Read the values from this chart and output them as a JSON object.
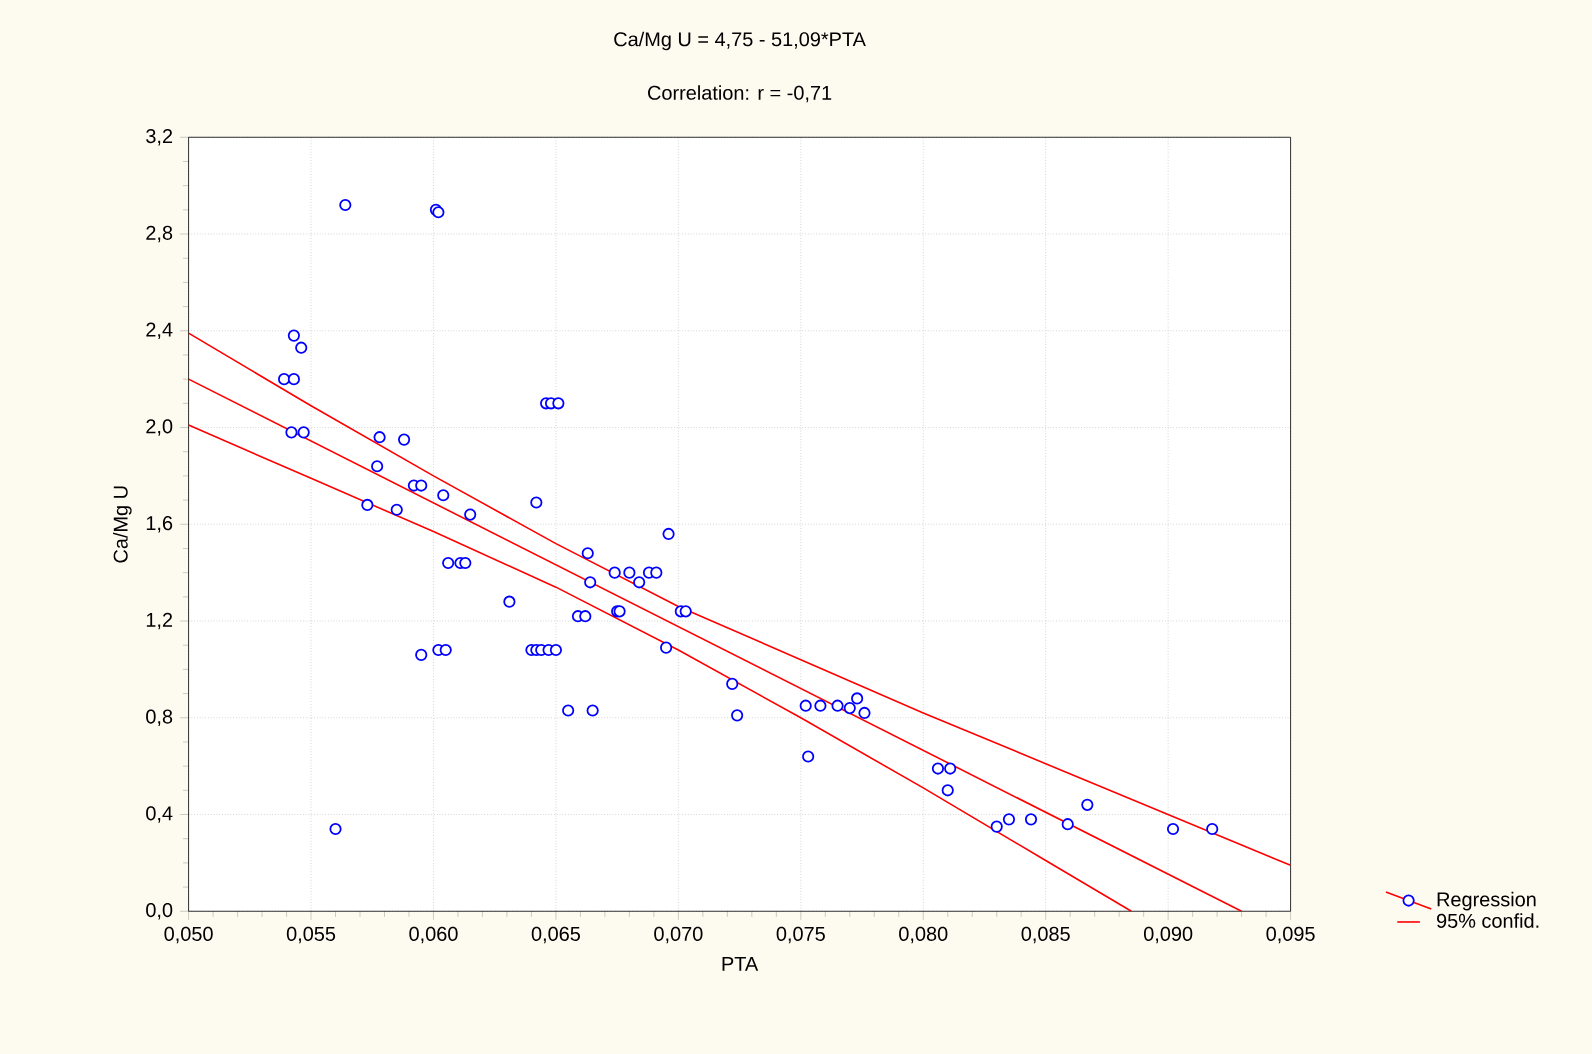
{
  "chart_data": {
    "type": "scatter",
    "title": "Ca/Mg U = 4,75 - 51,09*PTA",
    "subtitle": "Correlation: r = -0,71",
    "xlabel": "PTA",
    "ylabel": "Ca/Mg U",
    "xlim": [
      0.05,
      0.095
    ],
    "ylim": [
      0,
      3.2
    ],
    "xticks": [
      {
        "value": 0.05,
        "label": "0,050"
      },
      {
        "value": 0.055,
        "label": "0,055"
      },
      {
        "value": 0.06,
        "label": "0,060"
      },
      {
        "value": 0.065,
        "label": "0,065"
      },
      {
        "value": 0.07,
        "label": "0,070"
      },
      {
        "value": 0.075,
        "label": "0,075"
      },
      {
        "value": 0.08,
        "label": "0,080"
      },
      {
        "value": 0.085,
        "label": "0,085"
      },
      {
        "value": 0.09,
        "label": "0,090"
      },
      {
        "value": 0.095,
        "label": "0,095"
      }
    ],
    "yticks": [
      {
        "value": 0,
        "label": "0,0"
      },
      {
        "value": 0.4,
        "label": "0,4"
      },
      {
        "value": 0.8,
        "label": "0,8"
      },
      {
        "value": 1.2,
        "label": "1,2"
      },
      {
        "value": 1.6,
        "label": "1,6"
      },
      {
        "value": 2.0,
        "label": "2,0"
      },
      {
        "value": 2.4,
        "label": "2,4"
      },
      {
        "value": 2.8,
        "label": "2,8"
      },
      {
        "value": 3.2,
        "label": "3,2"
      }
    ],
    "grid": true,
    "legend": "bottom right",
    "series": [
      {
        "marker": "circle",
        "color": "#0000ff",
        "x": [
          0.0564,
          0.0601,
          0.0602,
          0.0543,
          0.0546,
          0.0539,
          0.0543,
          0.0542,
          0.0547,
          0.0578,
          0.0588,
          0.0577,
          0.0592,
          0.0595,
          0.0604,
          0.0573,
          0.0585,
          0.0615,
          0.0642,
          0.0606,
          0.0611,
          0.0613,
          0.0631,
          0.0595,
          0.0602,
          0.0605,
          0.064,
          0.0642,
          0.0644,
          0.0647,
          0.065,
          0.0646,
          0.0648,
          0.0651,
          0.056,
          0.0655,
          0.0665,
          0.0663,
          0.0664,
          0.0659,
          0.0662,
          0.0696,
          0.0674,
          0.068,
          0.0684,
          0.0688,
          0.0691,
          0.0675,
          0.0676,
          0.0701,
          0.0703,
          0.0695,
          0.0722,
          0.0724,
          0.0752,
          0.0758,
          0.0765,
          0.077,
          0.0773,
          0.0776,
          0.0753,
          0.0806,
          0.0811,
          0.081,
          0.083,
          0.0835,
          0.0844,
          0.0859,
          0.0867,
          0.0902,
          0.0918
        ],
        "values": [
          2.92,
          2.9,
          2.89,
          2.38,
          2.33,
          2.2,
          2.2,
          1.98,
          1.98,
          1.96,
          1.95,
          1.84,
          1.76,
          1.76,
          1.72,
          1.68,
          1.66,
          1.64,
          1.69,
          1.44,
          1.44,
          1.44,
          1.28,
          1.06,
          1.08,
          1.08,
          1.08,
          1.08,
          1.08,
          1.08,
          1.08,
          2.1,
          2.1,
          2.1,
          0.34,
          0.83,
          0.83,
          1.48,
          1.36,
          1.22,
          1.22,
          1.56,
          1.4,
          1.4,
          1.36,
          1.4,
          1.4,
          1.24,
          1.24,
          1.24,
          1.24,
          1.09,
          0.94,
          0.81,
          0.85,
          0.85,
          0.85,
          0.84,
          0.88,
          0.82,
          0.64,
          0.59,
          0.59,
          0.5,
          0.35,
          0.38,
          0.38,
          0.36,
          0.44,
          0.34,
          0.34
        ]
      },
      {
        "type": "line",
        "marker": "none",
        "name": "Regression",
        "color": "#ff0000",
        "x": [
          0.05,
          0.093
        ],
        "values": [
          2.2,
          0.0
        ]
      },
      {
        "type": "line",
        "marker": "none",
        "name": "95% confid.",
        "color": "#ff0000",
        "x": [
          0.05,
          0.055,
          0.06,
          0.065,
          0.07,
          0.075,
          0.08,
          0.085,
          0.09,
          0.095
        ],
        "values": [
          2.39,
          2.09,
          1.8,
          1.52,
          1.26,
          1.04,
          0.82,
          0.61,
          0.4,
          0.19
        ]
      },
      {
        "type": "line",
        "marker": "none",
        "color": "#ff0000",
        "x": [
          0.05,
          0.055,
          0.06,
          0.065,
          0.07,
          0.075,
          0.08,
          0.085,
          0.0885
        ],
        "values": [
          2.01,
          1.79,
          1.57,
          1.34,
          1.08,
          0.8,
          0.51,
          0.21,
          0.0
        ]
      }
    ]
  }
}
